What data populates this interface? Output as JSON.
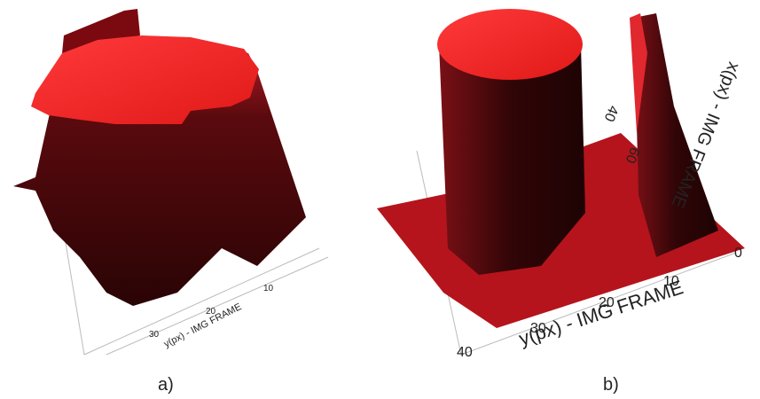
{
  "panels": [
    {
      "caption": "a)",
      "axis_label": "y(px) - IMG FRAME",
      "ticks": [
        "10",
        "20",
        "30"
      ]
    },
    {
      "caption": "b)",
      "axis_label": "y(px) - IMG FRAME",
      "ticks": [
        "0",
        "10",
        "20",
        "30",
        "40"
      ],
      "side_label": "x(px) - IMG FRAME",
      "side_ticks": [
        "40",
        "60"
      ]
    }
  ]
}
